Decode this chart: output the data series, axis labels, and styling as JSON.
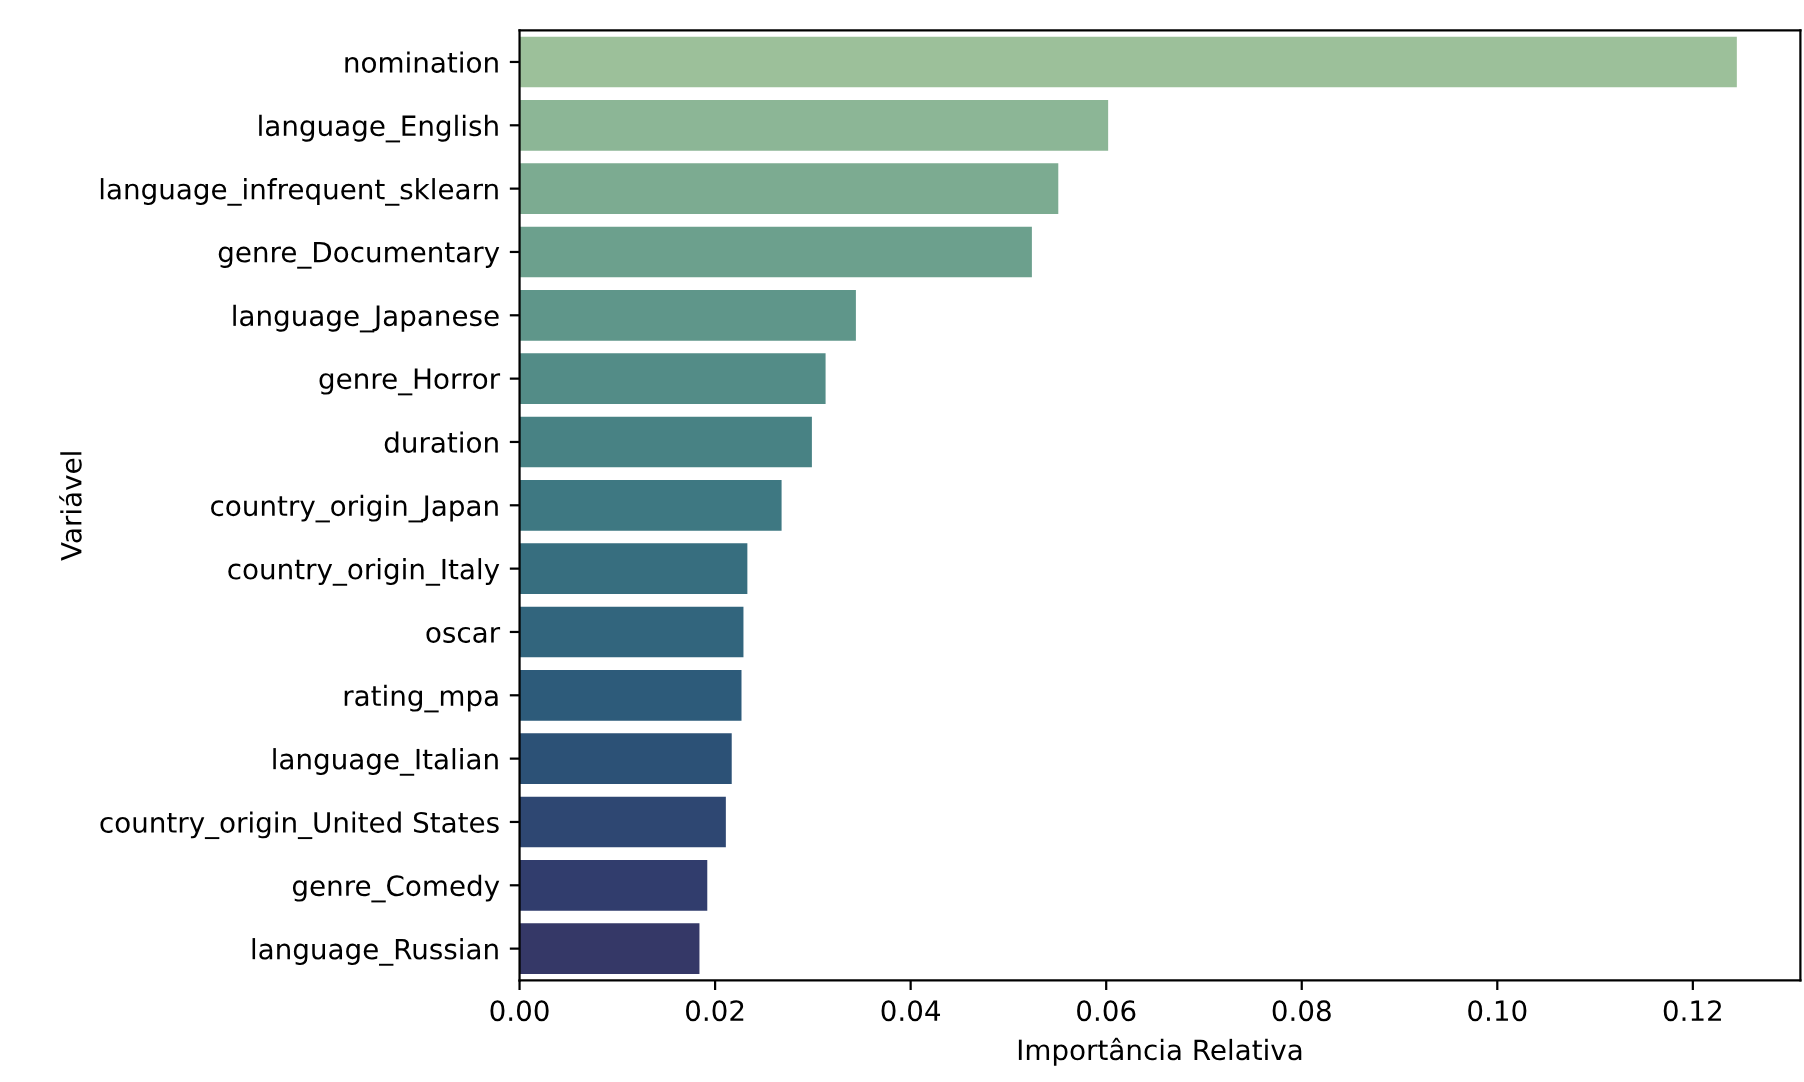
{
  "chart_data": {
    "type": "bar",
    "orientation": "horizontal",
    "xlabel": "Importância Relativa",
    "ylabel": "Variável",
    "categories": [
      "nomination",
      "language_English",
      "language_infrequent_sklearn",
      "genre_Documentary",
      "language_Japanese",
      "genre_Horror",
      "duration",
      "country_origin_Japan",
      "country_origin_Italy",
      "oscar",
      "rating_mpa",
      "language_Italian",
      "country_origin_United States",
      "genre_Comedy",
      "language_Russian"
    ],
    "values": [
      0.1245,
      0.0602,
      0.0551,
      0.0524,
      0.0344,
      0.0313,
      0.0299,
      0.0268,
      0.0233,
      0.0229,
      0.0227,
      0.0217,
      0.0211,
      0.0192,
      0.0184
    ],
    "colors": [
      "#9cc09a",
      "#8cb696",
      "#7cab91",
      "#6ca08d",
      "#5f968a",
      "#538c87",
      "#488284",
      "#3e7882",
      "#376e7f",
      "#32657d",
      "#2d5b7a",
      "#2c5176",
      "#2e4772",
      "#313d6d",
      "#353867"
    ],
    "xlim": [
      0,
      0.131
    ],
    "xticks": [
      {
        "value": 0,
        "label": "0.00"
      },
      {
        "value": 0.02,
        "label": "0.02"
      },
      {
        "value": 0.04,
        "label": "0.04"
      },
      {
        "value": 0.06,
        "label": "0.06"
      },
      {
        "value": 0.08,
        "label": "0.08"
      },
      {
        "value": 0.1,
        "label": "0.10"
      },
      {
        "value": 0.12,
        "label": "0.12"
      }
    ],
    "grid": false,
    "legend": false
  }
}
